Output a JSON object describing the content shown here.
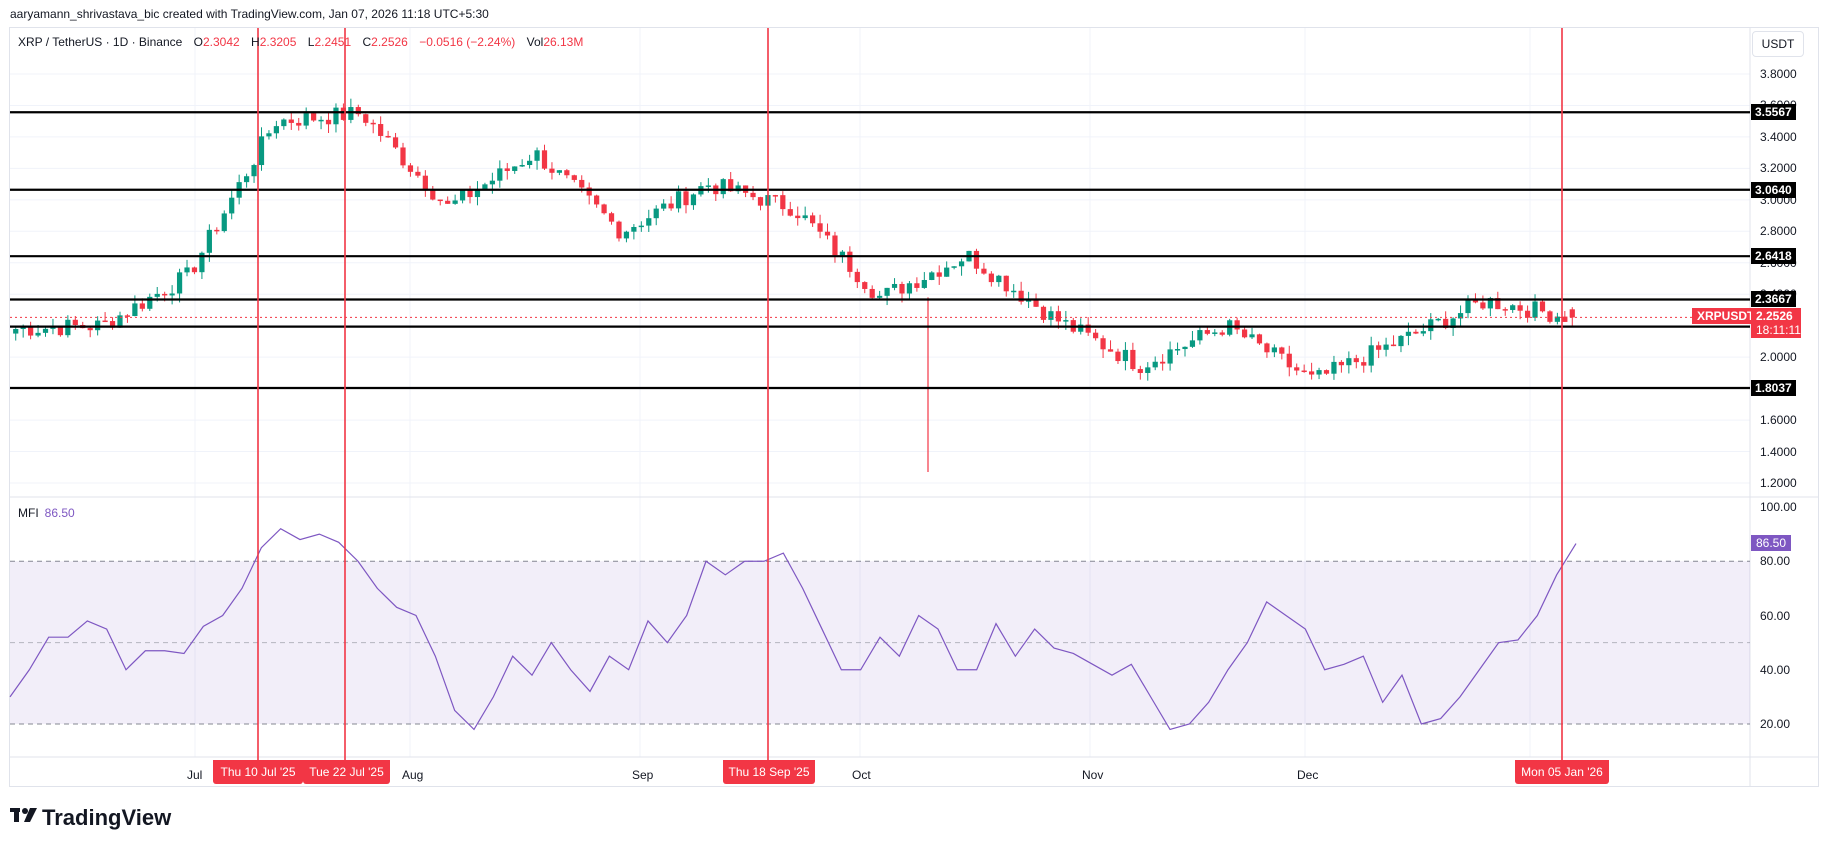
{
  "header": {
    "credit": "aaryamann_shrivastava_bic created with TradingView.com, Jan 07, 2026 11:18 UTC+5:30"
  },
  "legend": {
    "symbol": "XRP / TetherUS · 1D · Binance",
    "open_label": "O",
    "open": "2.3042",
    "high_label": "H",
    "high": "2.3205",
    "low_label": "L",
    "low": "2.2451",
    "close_label": "C",
    "close": "2.2526",
    "change": "−0.0516 (−2.24%)",
    "vol_label": "Vol",
    "vol": "26.13M"
  },
  "price_axis": {
    "currency": "USDT",
    "ticks": [
      "3.8000",
      "3.6000",
      "3.4000",
      "3.2000",
      "3.0000",
      "2.8000",
      "2.6000",
      "2.4000",
      "2.2000",
      "2.0000",
      "1.6000",
      "1.4000",
      "1.2000"
    ],
    "levels": [
      "3.5567",
      "3.0640",
      "2.6418",
      "2.3667",
      "2.1939",
      "1.8037"
    ],
    "symbol_tag": "XRPUSDT",
    "last_price": "2.2526",
    "countdown": "18:11:11"
  },
  "mfi": {
    "label": "MFI",
    "value": "86.50",
    "ticks": [
      "100.00",
      "80.00",
      "60.00",
      "40.00",
      "20.00"
    ]
  },
  "time_axis": {
    "months": [
      "Jul",
      "Aug",
      "Sep",
      "Oct",
      "Nov",
      "Dec"
    ],
    "markers": [
      "Thu 10 Jul '25",
      "Tue 22 Jul '25",
      "Thu 18 Sep '25",
      "Mon 05 Jan '26"
    ]
  },
  "branding": {
    "logo_text": "TradingView"
  },
  "colors": {
    "up": "#089981",
    "down": "#f23645",
    "mfi": "#7e57c2",
    "marker": "#f23645"
  },
  "chart_data": {
    "type": "candlestick",
    "title": "XRP / TetherUS · 1D · Binance",
    "ylabel": "USDT",
    "ylim": [
      1.2,
      3.9
    ],
    "horizontal_levels": [
      3.5567,
      3.064,
      2.6418,
      2.3667,
      2.1939,
      1.8037
    ],
    "vertical_markers": [
      "Thu 10 Jul '25",
      "Tue 22 Jul '25",
      "Thu 18 Sep '25",
      "Mon 05 Jan '26"
    ],
    "last_ohlc": {
      "open": 2.3042,
      "high": 2.3205,
      "low": 2.2451,
      "close": 2.2526,
      "change": -0.0516,
      "change_pct": -2.24,
      "volume": "26.13M"
    },
    "approx_path": [
      {
        "date": "Jun",
        "close": 2.18
      },
      {
        "date": "Jul 01",
        "close": 2.2
      },
      {
        "date": "Jul 10",
        "close": 2.52
      },
      {
        "date": "Jul 18",
        "close": 3.5
      },
      {
        "date": "Jul 22",
        "close": 3.55
      },
      {
        "date": "Aug 02",
        "close": 2.95
      },
      {
        "date": "Aug 10",
        "close": 3.3
      },
      {
        "date": "Sep 01",
        "close": 2.8
      },
      {
        "date": "Sep 18",
        "close": 3.1
      },
      {
        "date": "Oct 06",
        "close": 2.95
      },
      {
        "date": "Oct 10",
        "close": 2.38
      },
      {
        "date": "Oct 10 low",
        "close": 1.27
      },
      {
        "date": "Oct 27",
        "close": 2.65
      },
      {
        "date": "Nov 05",
        "close": 2.25
      },
      {
        "date": "Nov 21",
        "close": 1.95
      },
      {
        "date": "Dec 01",
        "close": 2.2
      },
      {
        "date": "Dec 18",
        "close": 1.85
      },
      {
        "date": "Jan 02",
        "close": 2.1
      },
      {
        "date": "Jan 05",
        "close": 2.36
      },
      {
        "date": "Jan 07",
        "close": 2.2526
      }
    ],
    "indicator": {
      "name": "MFI",
      "current": 86.5,
      "ylim": [
        10,
        100
      ],
      "bands": [
        20,
        50,
        80
      ],
      "approx_values": [
        30,
        40,
        52,
        52,
        58,
        55,
        40,
        47,
        47,
        46,
        56,
        60,
        70,
        85,
        92,
        88,
        90,
        87,
        80,
        70,
        63,
        60,
        45,
        25,
        18,
        30,
        45,
        38,
        50,
        40,
        32,
        45,
        40,
        58,
        50,
        60,
        80,
        75,
        80,
        80,
        83,
        70,
        55,
        40,
        40,
        52,
        45,
        60,
        55,
        40,
        40,
        57,
        45,
        55,
        48,
        46,
        42,
        38,
        42,
        30,
        18,
        20,
        28,
        40,
        50,
        65,
        60,
        55,
        40,
        42,
        45,
        28,
        38,
        20,
        22,
        30,
        40,
        50,
        51,
        60,
        75,
        86.5
      ]
    }
  }
}
